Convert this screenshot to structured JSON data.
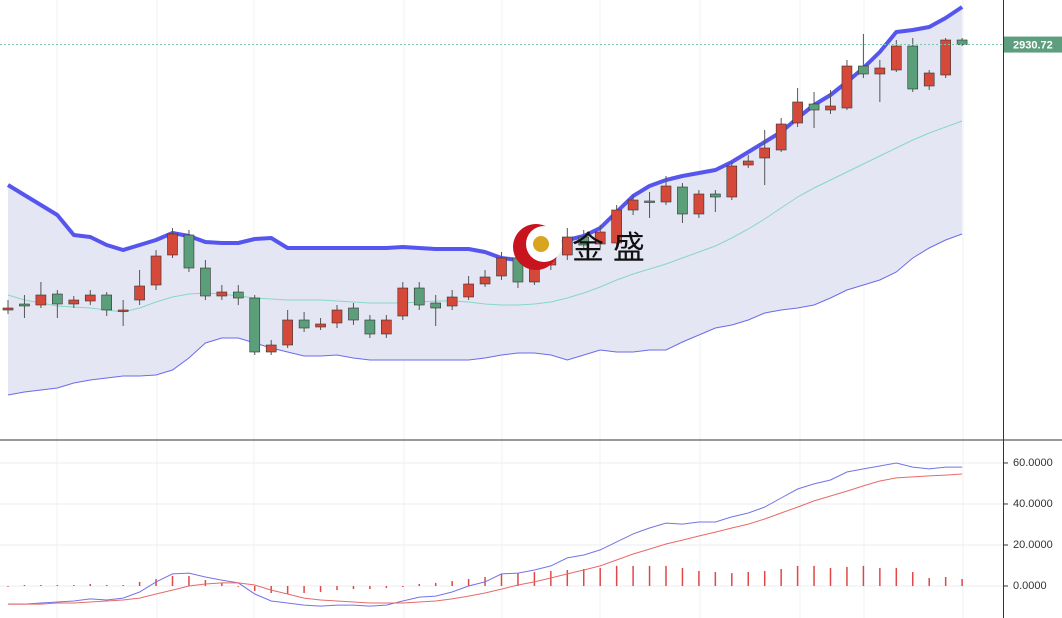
{
  "chart_data": [
    {
      "type": "candlestick",
      "ylim": [
        2733,
        2953
      ],
      "yticks": [
        2930.72
      ],
      "watermark": "金 盛",
      "up_color": "#d4493a",
      "down_color": "#5a9e7a",
      "open": [
        2798,
        2801,
        2800.5,
        2806,
        2801,
        2802.5,
        2805.5,
        2797.5,
        2803,
        2810.5,
        2825.5,
        2835.5,
        2819,
        2805,
        2807,
        2804,
        2777,
        2780.5,
        2793,
        2789.5,
        2791.5,
        2799,
        2793,
        2786,
        2795,
        2809,
        2801.5,
        2800,
        2804.5,
        2811,
        2815,
        2824,
        2812,
        2820.5,
        2825.5,
        2834.5,
        2831,
        2831.5,
        2848,
        2852.5,
        2852,
        2859.5,
        2846,
        2856,
        2854.5,
        2870.5,
        2874,
        2878,
        2891.5,
        2901,
        2898,
        2899,
        2920,
        2916,
        2918,
        2930,
        2910,
        2915.5,
        2933
      ],
      "high": [
        2803,
        2805.5,
        2812,
        2808,
        2805,
        2808,
        2807,
        2803,
        2818,
        2828,
        2839,
        2838,
        2823,
        2810.5,
        2810.5,
        2805.5,
        2783,
        2798,
        2797,
        2794,
        2800.5,
        2801.5,
        2795.5,
        2795.5,
        2812,
        2812,
        2805.5,
        2808,
        2815,
        2818,
        2827,
        2827,
        2828,
        2833,
        2839,
        2838,
        2840.5,
        2850.5,
        2855.5,
        2857,
        2865,
        2861.5,
        2858,
        2858,
        2872,
        2875.5,
        2888,
        2894,
        2909,
        2907,
        2908,
        2923,
        2936,
        2923,
        2933,
        2934,
        2918,
        2934,
        2934
      ],
      "low": [
        2796,
        2794,
        2799,
        2794,
        2799,
        2800.5,
        2795,
        2790,
        2800.5,
        2808,
        2824,
        2817,
        2803,
        2803,
        2800.5,
        2775.5,
        2775.5,
        2779,
        2787,
        2788,
        2789,
        2790.5,
        2784,
        2784,
        2793,
        2798,
        2790,
        2798,
        2803,
        2809.5,
        2813,
        2809,
        2810.5,
        2818,
        2823,
        2828,
        2829,
        2829.5,
        2845.5,
        2844,
        2850.5,
        2841.5,
        2844,
        2847,
        2853,
        2869,
        2860.5,
        2877,
        2889.5,
        2889,
        2896,
        2898,
        2914,
        2902,
        2917,
        2907,
        2908,
        2914,
        2930
      ],
      "close": [
        2799,
        2800,
        2805.5,
        2801,
        2803,
        2805.5,
        2798,
        2798,
        2810,
        2825,
        2836,
        2819,
        2805,
        2807,
        2804,
        2777,
        2780.5,
        2793,
        2789,
        2791,
        2798,
        2793,
        2786,
        2793,
        2809,
        2800.5,
        2799,
        2804.5,
        2811,
        2814.5,
        2824,
        2812,
        2824,
        2828,
        2834.5,
        2830.5,
        2837,
        2848,
        2853,
        2852,
        2860,
        2846,
        2856,
        2854.5,
        2870,
        2872.5,
        2879,
        2891,
        2902,
        2898,
        2900,
        2920,
        2916,
        2919,
        2930,
        2908.5,
        2916.5,
        2933,
        2930.72
      ],
      "upper": [
        2860.5,
        2855.5,
        2850.5,
        2845.5,
        2835.5,
        2834.5,
        2830.5,
        2828,
        2830.5,
        2833,
        2836.5,
        2835,
        2832,
        2831.5,
        2831.5,
        2833.5,
        2834,
        2829,
        2829,
        2829,
        2829,
        2829,
        2829,
        2829,
        2829.5,
        2829,
        2828.5,
        2828.5,
        2828.5,
        2827,
        2824,
        2823,
        2825.5,
        2829,
        2833,
        2835,
        2839,
        2847,
        2855,
        2860,
        2863,
        2865,
        2866.5,
        2868,
        2872,
        2877,
        2882,
        2887,
        2894,
        2900.5,
        2905.5,
        2912,
        2919,
        2927,
        2937,
        2938,
        2939.5,
        2944,
        2949.5
      ],
      "middle": [
        2805.5,
        2803,
        2801.5,
        2800,
        2799.5,
        2799,
        2798,
        2797,
        2799,
        2802,
        2804.5,
        2806,
        2806.5,
        2806,
        2805,
        2804,
        2803.5,
        2803,
        2803,
        2803,
        2802.5,
        2802,
        2801.5,
        2801.5,
        2801.5,
        2802,
        2802.5,
        2802.5,
        2802,
        2801,
        2800.5,
        2800.5,
        2801,
        2802,
        2804,
        2806.5,
        2809.5,
        2813,
        2816,
        2818.5,
        2821,
        2824,
        2827,
        2830,
        2834,
        2838.5,
        2843.5,
        2849,
        2854.5,
        2859,
        2863,
        2867,
        2871,
        2875,
        2879,
        2883,
        2886.5,
        2889.5,
        2892.5
      ],
      "lower": [
        2755.5,
        2757,
        2758,
        2759,
        2761.5,
        2763,
        2764,
        2765,
        2765,
        2765.5,
        2768,
        2774,
        2781.5,
        2784,
        2784,
        2781.5,
        2779,
        2777,
        2775,
        2775,
        2775.5,
        2774,
        2773,
        2773,
        2773,
        2773,
        2773,
        2773,
        2773,
        2774,
        2775.5,
        2776.5,
        2776.5,
        2775.5,
        2773,
        2775.5,
        2778,
        2777,
        2777,
        2778,
        2778,
        2782,
        2785.5,
        2789,
        2790.5,
        2793,
        2796.5,
        2798,
        2799,
        2800.5,
        2804,
        2808,
        2810.5,
        2813,
        2817,
        2824,
        2829,
        2833,
        2836
      ]
    },
    {
      "type": "macd",
      "ylim": [
        -15.6,
        71.2
      ],
      "yticks": [
        {
          "value": 60,
          "label": "60.0000"
        },
        {
          "value": 40,
          "label": "40.0000"
        },
        {
          "value": 20,
          "label": "20.0000"
        },
        {
          "value": 0,
          "label": "0.0000"
        }
      ],
      "grid": true,
      "series": [
        {
          "color": "#7474e6",
          "values": [
            -8.8,
            -8.8,
            -8.3,
            -7.8,
            -7.3,
            -6.3,
            -6.8,
            -5.9,
            -2.9,
            2.0,
            5.9,
            6.3,
            4.4,
            2.9,
            1.5,
            -3.9,
            -7.3,
            -8.3,
            -9.3,
            -9.8,
            -9.3,
            -9.3,
            -9.8,
            -9.3,
            -7.3,
            -5.4,
            -4.9,
            -2.9,
            0,
            2.0,
            5.9,
            6.3,
            7.8,
            9.8,
            13.7,
            15.1,
            17.6,
            21.5,
            25.4,
            28.3,
            30.7,
            30.2,
            31.2,
            31.2,
            33.7,
            35.6,
            38.5,
            42.9,
            47.3,
            49.8,
            51.7,
            55.6,
            57.1,
            58.5,
            60.0,
            58.0,
            57.1,
            58.0,
            58.0
          ]
        },
        {
          "color": "#e86a6a",
          "values": [
            -8.8,
            -8.8,
            -8.8,
            -8.3,
            -8.3,
            -7.8,
            -7.3,
            -6.8,
            -5.9,
            -3.9,
            -2.0,
            0,
            1.0,
            1.5,
            1.5,
            0.5,
            -2.0,
            -3.9,
            -5.9,
            -6.8,
            -7.3,
            -7.8,
            -8.3,
            -8.3,
            -8.3,
            -7.8,
            -7.3,
            -6.3,
            -4.9,
            -3.4,
            -1.5,
            0.5,
            2.0,
            3.9,
            5.9,
            7.8,
            9.8,
            12.7,
            15.6,
            18.0,
            20.5,
            22.4,
            24.4,
            26.3,
            28.3,
            30.2,
            32.7,
            35.6,
            38.5,
            41.5,
            43.9,
            46.3,
            48.8,
            51.2,
            52.7,
            53.2,
            53.7,
            54.1,
            54.6
          ]
        }
      ],
      "histogram": {
        "color": "#e04848",
        "values": [
          0,
          0.5,
          0.5,
          0.5,
          0.5,
          1.0,
          0.5,
          0.5,
          2.0,
          3.4,
          4.9,
          4.9,
          2.9,
          1.5,
          0,
          -2.4,
          -3.4,
          -3.9,
          -3.4,
          -2.9,
          -2.0,
          -1.5,
          -1.5,
          -1.0,
          -0.5,
          1.0,
          1.5,
          2.4,
          3.4,
          4.4,
          5.9,
          6.3,
          6.8,
          7.3,
          7.8,
          8.3,
          8.8,
          9.8,
          9.8,
          9.8,
          9.8,
          8.8,
          7.3,
          6.8,
          6.3,
          6.8,
          7.3,
          8.3,
          9.8,
          9.8,
          8.8,
          9.3,
          9.8,
          8.8,
          8.8,
          6.8,
          3.9,
          4.4,
          3.4
        ]
      }
    }
  ]
}
